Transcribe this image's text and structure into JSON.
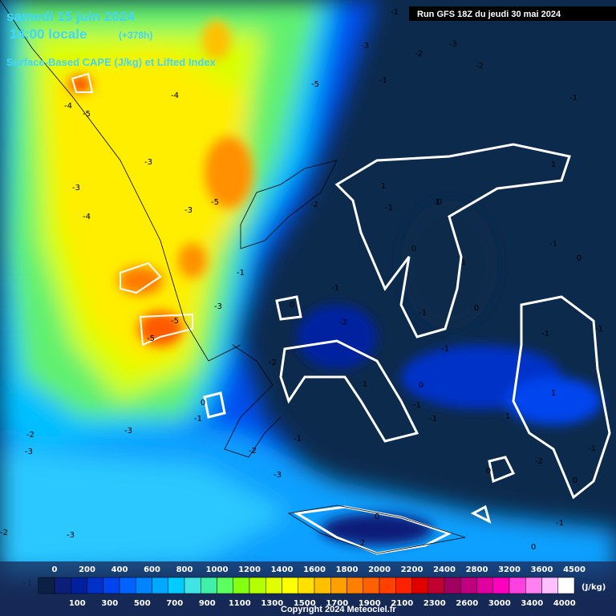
{
  "header": {
    "date": "samedi 15 juin 2024",
    "time": "14:00 locale",
    "lead": "(+378h)",
    "field": "Surface-Based CAPE (J/kg) et Lifted Index",
    "run": "Run GFS 18Z du jeudi 30 mai 2024"
  },
  "contours": [
    -1,
    -2,
    -3,
    -2,
    -3,
    -1,
    -2,
    -1,
    -5,
    -4,
    -4,
    -5,
    -3,
    -3,
    -4,
    -3,
    -5,
    -2,
    -1,
    1,
    1,
    0,
    1,
    -1,
    0,
    -1,
    -1,
    0,
    -1,
    0,
    -2,
    -5,
    -5,
    -3,
    -1,
    -1,
    -1,
    -2,
    0,
    1,
    -1,
    0,
    -1,
    -3,
    -2,
    -3,
    -2,
    -1,
    -1,
    0,
    0,
    -2,
    -3,
    -1,
    -2,
    -3,
    0,
    2,
    0,
    -1,
    -1,
    1,
    1,
    1,
    0
  ],
  "colorbar": {
    "ticks": [
      0,
      100,
      200,
      300,
      400,
      500,
      600,
      700,
      800,
      900,
      1000,
      1100,
      1200,
      1300,
      1400,
      1500,
      1600,
      1700,
      1800,
      1900,
      2000,
      2100,
      2200,
      2300,
      2400,
      2600,
      2800,
      3000,
      3200,
      3400,
      3600,
      4000,
      4500
    ],
    "colors": [
      "#0c1f45",
      "#0b1e78",
      "#0020a0",
      "#0030c8",
      "#0044ee",
      "#0062ff",
      "#0084ff",
      "#00a8ff",
      "#00ccff",
      "#40e4e4",
      "#40f0a8",
      "#5cff60",
      "#84ff10",
      "#b4ff00",
      "#e0ff00",
      "#ffff00",
      "#ffe000",
      "#ffc000",
      "#ffa000",
      "#ff8000",
      "#ff6000",
      "#ff4000",
      "#ff2000",
      "#e00000",
      "#c00030",
      "#a00060",
      "#c00080",
      "#e000a0",
      "#ff00c0",
      "#ff40e0",
      "#ff80f0",
      "#ffc0ff",
      "#ffffff"
    ],
    "unit": "(J/kg)"
  },
  "copyright": "Copyright 2024 Meteociel.fr"
}
